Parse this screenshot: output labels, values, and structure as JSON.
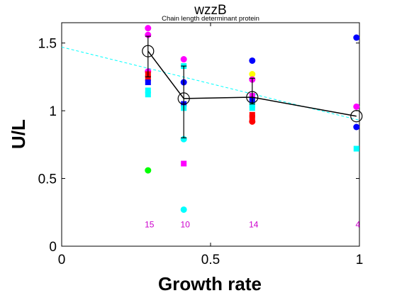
{
  "chart_data": {
    "type": "scatter",
    "title": "wzzB",
    "subtitle": "Chain length determinant protein",
    "xlabel": "Growth rate",
    "ylabel": "U/L",
    "xlim": [
      0,
      1.0
    ],
    "ylim": [
      0,
      1.65
    ],
    "xticks": [
      "0",
      "0.5",
      "1"
    ],
    "yticks": [
      "0",
      "0.5",
      "1",
      "1.5"
    ],
    "grid": false,
    "legend": "none",
    "fit_line": {
      "color": "#00ffff",
      "style": "dashed",
      "x": [
        0,
        1.0
      ],
      "y": [
        1.47,
        0.93
      ]
    },
    "mean_series": {
      "x": [
        0.29,
        0.41,
        0.64,
        0.99
      ],
      "y": [
        1.44,
        1.09,
        1.1,
        0.96
      ],
      "err_lo": [
        1.25,
        0.8,
        1.05,
        0.96
      ],
      "err_hi": [
        1.55,
        1.33,
        1.24,
        0.96
      ]
    },
    "counts": [
      {
        "x": 0.29,
        "label": "15"
      },
      {
        "x": 0.41,
        "label": "10"
      },
      {
        "x": 0.64,
        "label": "14"
      },
      {
        "x": 0.99,
        "label": "4"
      }
    ],
    "points": [
      {
        "x": 0.29,
        "y": 1.61,
        "color": "#ff00ff",
        "marker": "circle"
      },
      {
        "x": 0.29,
        "y": 1.56,
        "color": "#ff00ff",
        "marker": "circle"
      },
      {
        "x": 0.29,
        "y": 1.29,
        "color": "#ff00ff",
        "marker": "circle"
      },
      {
        "x": 0.29,
        "y": 1.27,
        "color": "#ff0000",
        "marker": "square"
      },
      {
        "x": 0.29,
        "y": 1.24,
        "color": "#ff0000",
        "marker": "square"
      },
      {
        "x": 0.29,
        "y": 1.21,
        "color": "#0000ff",
        "marker": "square"
      },
      {
        "x": 0.29,
        "y": 1.15,
        "color": "#00ffff",
        "marker": "square"
      },
      {
        "x": 0.29,
        "y": 1.12,
        "color": "#00ffff",
        "marker": "square"
      },
      {
        "x": 0.29,
        "y": 0.56,
        "color": "#00ff00",
        "marker": "circle"
      },
      {
        "x": 0.41,
        "y": 1.38,
        "color": "#ff00ff",
        "marker": "circle"
      },
      {
        "x": 0.41,
        "y": 1.33,
        "color": "#00ffff",
        "marker": "square"
      },
      {
        "x": 0.41,
        "y": 1.21,
        "color": "#0000ff",
        "marker": "circle"
      },
      {
        "x": 0.41,
        "y": 1.05,
        "color": "#0000ff",
        "marker": "square"
      },
      {
        "x": 0.41,
        "y": 1.02,
        "color": "#00ffff",
        "marker": "square"
      },
      {
        "x": 0.41,
        "y": 0.79,
        "color": "#00ffff",
        "marker": "circle"
      },
      {
        "x": 0.41,
        "y": 0.61,
        "color": "#ff00ff",
        "marker": "square"
      },
      {
        "x": 0.41,
        "y": 0.27,
        "color": "#00ffff",
        "marker": "circle"
      },
      {
        "x": 0.64,
        "y": 1.37,
        "color": "#0000ff",
        "marker": "circle"
      },
      {
        "x": 0.64,
        "y": 1.27,
        "color": "#ffff00",
        "marker": "circle"
      },
      {
        "x": 0.64,
        "y": 1.23,
        "color": "#ff00ff",
        "marker": "circle"
      },
      {
        "x": 0.64,
        "y": 1.11,
        "color": "#ff00ff",
        "marker": "square"
      },
      {
        "x": 0.64,
        "y": 1.08,
        "color": "#0000ff",
        "marker": "square"
      },
      {
        "x": 0.64,
        "y": 1.04,
        "color": "#00ffff",
        "marker": "square"
      },
      {
        "x": 0.64,
        "y": 1.02,
        "color": "#00ffff",
        "marker": "square"
      },
      {
        "x": 0.64,
        "y": 0.97,
        "color": "#ff0000",
        "marker": "square"
      },
      {
        "x": 0.64,
        "y": 0.95,
        "color": "#ff0000",
        "marker": "square"
      },
      {
        "x": 0.64,
        "y": 0.92,
        "color": "#ff0000",
        "marker": "circle"
      },
      {
        "x": 0.99,
        "y": 1.54,
        "color": "#0000ff",
        "marker": "circle"
      },
      {
        "x": 0.99,
        "y": 1.03,
        "color": "#ff00ff",
        "marker": "circle"
      },
      {
        "x": 0.99,
        "y": 0.88,
        "color": "#0000ff",
        "marker": "circle"
      },
      {
        "x": 0.99,
        "y": 0.72,
        "color": "#00ffff",
        "marker": "square"
      }
    ]
  }
}
